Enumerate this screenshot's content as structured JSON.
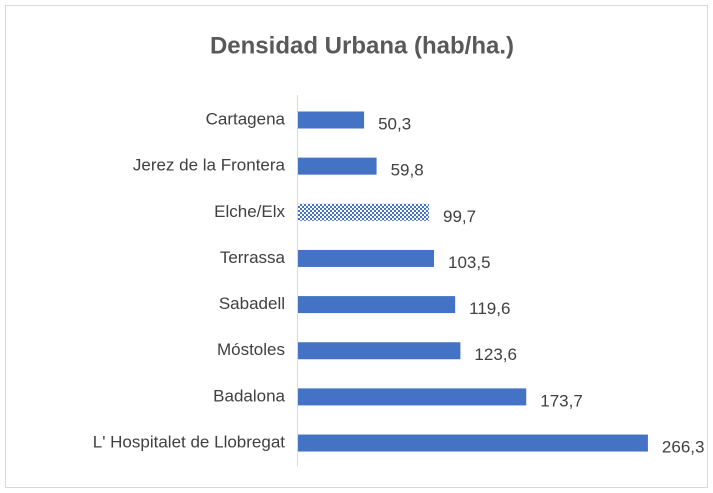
{
  "chart_data": {
    "type": "bar",
    "orientation": "horizontal",
    "title": "Densidad Urbana (hab/ha.)",
    "categories": [
      "Cartagena",
      "Jerez de la Frontera",
      "Elche/Elx",
      "Terrassa",
      "Sabadell",
      "Móstoles",
      "Badalona",
      "L' Hospitalet de Llobregat"
    ],
    "values": [
      50.3,
      59.8,
      99.7,
      103.5,
      119.6,
      123.6,
      173.7,
      266.3
    ],
    "value_labels": [
      "50,3",
      "59,8",
      "99,7",
      "103,5",
      "119,6",
      "123,6",
      "173,7",
      "266,3"
    ],
    "color": "#4472c4",
    "fills": [
      "solid",
      "solid",
      "checkered",
      "solid",
      "solid",
      "solid",
      "solid",
      "solid"
    ]
  }
}
